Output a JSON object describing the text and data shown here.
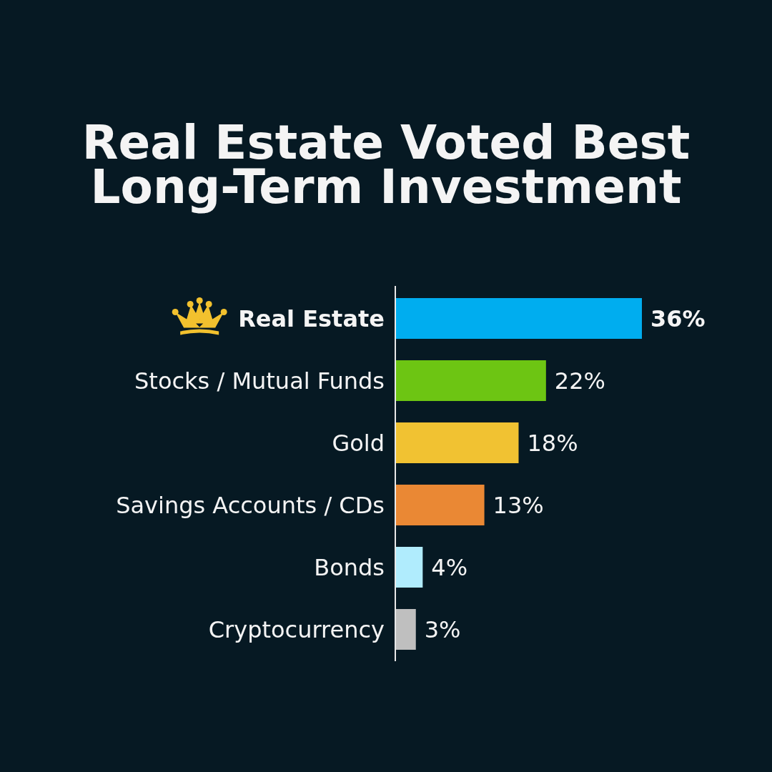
{
  "chart_data": {
    "type": "bar",
    "orientation": "horizontal",
    "title": "Real Estate Voted Best Long-Term Investment",
    "categories": [
      "Real Estate",
      "Stocks / Mutual Funds",
      "Gold",
      "Savings Accounts / CDs",
      "Bonds",
      "Cryptocurrency"
    ],
    "values": [
      36,
      22,
      18,
      13,
      4,
      3
    ],
    "colors": [
      "#00adef",
      "#6dc513",
      "#f1c232",
      "#ea8834",
      "#b0ecfd",
      "#bfbfbf"
    ],
    "value_labels": [
      "36%",
      "22%",
      "18%",
      "13%",
      "4%",
      "3%"
    ]
  }
}
